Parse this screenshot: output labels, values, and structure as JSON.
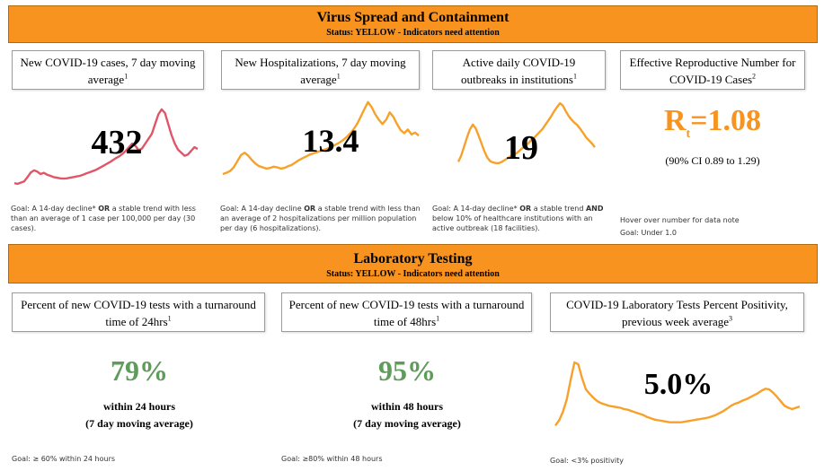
{
  "section1": {
    "title": "Virus Spread and Containment",
    "status": "Status: YELLOW - Indicators need attention"
  },
  "cards1": [
    {
      "label": "New COVID-19 cases, 7 day moving average",
      "sup": "1"
    },
    {
      "label": "New Hospitalizations, 7 day moving average",
      "sup": "1"
    },
    {
      "label": "Active daily COVID-19 outbreaks in institutions",
      "sup": "1"
    },
    {
      "label": "Effective Reproductive Number for COVID-19 Cases",
      "sup": "2"
    }
  ],
  "metrics1": {
    "cases": "432",
    "hospitalizations": "13.4",
    "outbreaks": "19",
    "rt_prefix": "R",
    "rt_sub": "t",
    "rt_value": "=1.08",
    "rt_ci": "(90% CI 0.89 to 1.29)"
  },
  "goals1": {
    "cases": {
      "pre": "Goal: A 14-day decline* ",
      "bold": "OR",
      "post": " a stable trend with less than an average of 1 case per 100,000 per day (30 cases)."
    },
    "hosp": {
      "pre": "Goal: A 14-day decline ",
      "bold": "OR",
      "post": " a stable trend with less than an average of 2 hospitalizations per million population per day (6 hospitalizations)."
    },
    "outbreaks": {
      "pre": "Goal: A 14-day decline* ",
      "bold": "OR",
      "post": " a stable trend ",
      "bold2": "AND",
      "post2": " below 10% of healthcare institutions with an active outbreak (18 facilities)."
    },
    "rt_note": "Hover over number for  data note",
    "rt_goal": "Goal: Under 1.0"
  },
  "section2": {
    "title": "Laboratory Testing",
    "status": "Status: YELLOW - Indicators need attention"
  },
  "cards2": [
    {
      "label": "Percent of new COVID-19 tests with a turnaround time of 24hrs",
      "sup": "1"
    },
    {
      "label": "Percent of new COVID-19 tests with a turnaround time of 48hrs",
      "sup": "1"
    },
    {
      "label": "COVID-19 Laboratory Tests Percent Positivity, previous week average",
      "sup": "3"
    }
  ],
  "metrics2": {
    "tat24_value": "79%",
    "tat24_line1": "within 24 hours",
    "tat24_line2": "(7 day moving average)",
    "tat48_value": "95%",
    "tat48_line1": "within 48 hours",
    "tat48_line2": "(7 day moving average)",
    "positivity": "5.0%"
  },
  "goals2": {
    "tat24": "Goal: ≥ 60% within 24  hours",
    "tat48": "Goal: ≥80% within 48 hours",
    "positivity": "Goal: <3% positivity"
  },
  "colors": {
    "banner": "#F7931E",
    "cases_line": "#E05668",
    "orange_line": "#F7A12B",
    "rt_text": "#F7931E",
    "green_text": "#5E9C5A"
  },
  "sparklines": {
    "cases": [
      20,
      18,
      22,
      26,
      40,
      55,
      62,
      58,
      50,
      54,
      48,
      44,
      40,
      38,
      36,
      35,
      36,
      38,
      40,
      42,
      44,
      48,
      52,
      56,
      60,
      64,
      70,
      76,
      82,
      88,
      95,
      102,
      108,
      116,
      126,
      138,
      150,
      142,
      128,
      134,
      150,
      166,
      182,
      214,
      246,
      262,
      250,
      214,
      178,
      150,
      130,
      120,
      110,
      114,
      126,
      138,
      132
    ],
    "hosp": [
      50,
      54,
      60,
      72,
      92,
      112,
      120,
      110,
      96,
      84,
      76,
      72,
      68,
      70,
      74,
      72,
      68,
      70,
      76,
      80,
      88,
      96,
      102,
      108,
      114,
      118,
      122,
      126,
      130,
      134,
      140,
      146,
      152,
      160,
      170,
      182,
      196,
      214,
      238,
      262,
      286,
      270,
      246,
      228,
      214,
      228,
      252,
      238,
      214,
      194,
      184,
      196,
      180,
      186,
      176
    ],
    "outbreaks": [
      90,
      110,
      140,
      170,
      196,
      212,
      200,
      176,
      150,
      124,
      104,
      92,
      88,
      86,
      86,
      90,
      96,
      102,
      108,
      114,
      118,
      126,
      134,
      142,
      150,
      160,
      168,
      178,
      188,
      198,
      212,
      226,
      240,
      256,
      270,
      282,
      274,
      256,
      240,
      228,
      218,
      210,
      198,
      184,
      170,
      160,
      150,
      138
    ],
    "positivity": [
      40,
      56,
      82,
      120,
      178,
      232,
      226,
      184,
      150,
      136,
      124,
      114,
      108,
      104,
      100,
      98,
      96,
      94,
      90,
      88,
      84,
      80,
      76,
      72,
      66,
      62,
      58,
      56,
      54,
      52,
      50,
      50,
      50,
      50,
      52,
      54,
      56,
      58,
      60,
      62,
      64,
      68,
      72,
      78,
      84,
      92,
      100,
      106,
      110,
      116,
      120,
      126,
      132,
      138,
      146,
      152,
      150,
      140,
      128,
      114,
      100,
      94,
      90,
      94,
      98
    ]
  }
}
